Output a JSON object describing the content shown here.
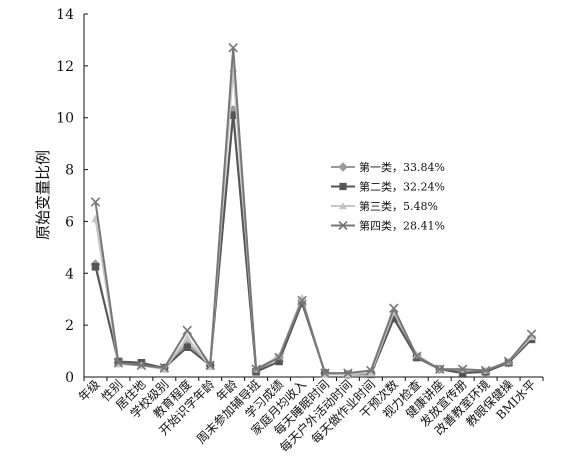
{
  "chart_data": {
    "type": "line",
    "ylabel": "原始变量比例",
    "ylim": [
      0,
      14
    ],
    "yticks": [
      0,
      2,
      4,
      6,
      8,
      10,
      12,
      14
    ],
    "grid": false,
    "legend_position": "right-middle",
    "categories": [
      "年级",
      "性别",
      "居住地",
      "学校级别",
      "教育程度",
      "开始识字年龄",
      "年龄",
      "周末参加辅导班",
      "学习成绩",
      "家庭月均收入",
      "每天睡眠时间",
      "每天户外活动时间",
      "每天做作业时间",
      "干预次数",
      "视力检查",
      "健康讲座",
      "发放宣传册",
      "改善教室环境",
      "教眼保健操",
      "BMI水平"
    ],
    "series": [
      {
        "name": "第一类，33.84%",
        "color": "#9a9a9a",
        "marker": "diamond",
        "values": [
          4.35,
          0.55,
          0.5,
          0.35,
          1.3,
          0.45,
          10.3,
          0.25,
          0.75,
          2.95,
          0.15,
          0.1,
          0.15,
          2.3,
          0.8,
          0.3,
          0.2,
          0.2,
          0.55,
          1.5
        ]
      },
      {
        "name": "第二类，32.24%",
        "color": "#555555",
        "marker": "square",
        "values": [
          4.25,
          0.6,
          0.55,
          0.35,
          1.15,
          0.45,
          10.1,
          0.2,
          0.6,
          2.85,
          0.15,
          0.1,
          0.1,
          2.25,
          0.75,
          0.3,
          0.15,
          0.2,
          0.55,
          1.45
        ]
      },
      {
        "name": "第三类，5.48%",
        "color": "#c4c4c4",
        "marker": "triangle",
        "values": [
          6.1,
          0.5,
          0.45,
          0.3,
          1.5,
          0.4,
          11.9,
          0.3,
          0.8,
          3.05,
          0.1,
          0.1,
          0.15,
          2.5,
          0.85,
          0.3,
          0.3,
          0.25,
          0.6,
          1.55
        ]
      },
      {
        "name": "第四类，28.41%",
        "color": "#777777",
        "marker": "x",
        "values": [
          6.75,
          0.55,
          0.45,
          0.35,
          1.8,
          0.45,
          12.7,
          0.3,
          0.75,
          2.95,
          0.15,
          0.15,
          0.25,
          2.65,
          0.8,
          0.3,
          0.3,
          0.25,
          0.6,
          1.65
        ]
      }
    ]
  }
}
